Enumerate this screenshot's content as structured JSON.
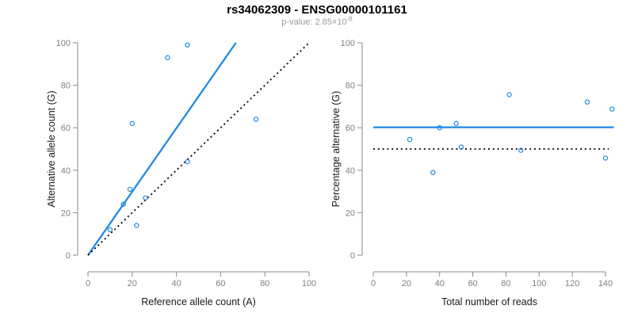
{
  "header": {
    "title": "rs34062309 - ENSG00000101161",
    "subtitle_prefix": "p-value: ",
    "subtitle_mantissa": "2.85×10",
    "subtitle_exponent": "-8"
  },
  "colors": {
    "accent_blue": "#1e87e5",
    "dotted_black": "#000000",
    "axis_gray": "#8a8a8a",
    "tick_label_gray": "#808080",
    "axis_title_black": "#1a1a1a",
    "subtitle_gray": "#9a9a9a",
    "background": "#ffffff"
  },
  "chart_data": [
    {
      "type": "scatter",
      "panel": "left",
      "xlabel": "Reference allele count (A)",
      "ylabel": "Alternative allele count (G)",
      "xlim": [
        0,
        100
      ],
      "ylim": [
        0,
        100
      ],
      "xticks": [
        0,
        20,
        40,
        60,
        80,
        100
      ],
      "yticks": [
        0,
        20,
        40,
        60,
        80,
        100
      ],
      "grid": false,
      "legend": "none",
      "points": [
        [
          10,
          12
        ],
        [
          16,
          24
        ],
        [
          19,
          31
        ],
        [
          20,
          62
        ],
        [
          22,
          14
        ],
        [
          26,
          27
        ],
        [
          36,
          93
        ],
        [
          45,
          44
        ],
        [
          45,
          99
        ],
        [
          76,
          64
        ]
      ],
      "lines": [
        {
          "name": "fit-line",
          "style": "solid",
          "color": "#1e87e5",
          "x": [
            0,
            66.9
          ],
          "y": [
            0,
            100
          ]
        },
        {
          "name": "identity-line",
          "style": "dotted",
          "color": "#000000",
          "x": [
            0,
            100
          ],
          "y": [
            0,
            100
          ]
        }
      ]
    },
    {
      "type": "scatter",
      "panel": "right",
      "xlabel": "Total number of reads",
      "ylabel": "Percentage alternative (G)",
      "xlim": [
        0,
        145
      ],
      "ylim": [
        0,
        100
      ],
      "xticks": [
        0,
        20,
        40,
        60,
        80,
        100,
        120,
        140
      ],
      "yticks": [
        0,
        20,
        40,
        60,
        80,
        100
      ],
      "grid": false,
      "legend": "none",
      "points": [
        [
          22,
          54.5
        ],
        [
          36,
          38.9
        ],
        [
          40,
          60
        ],
        [
          50,
          62
        ],
        [
          53,
          50.9
        ],
        [
          82,
          75.6
        ],
        [
          89,
          49.4
        ],
        [
          129,
          72.1
        ],
        [
          140,
          45.7
        ],
        [
          144,
          68.8
        ]
      ],
      "lines": [
        {
          "name": "fit-line",
          "style": "solid",
          "color": "#1e87e5",
          "x": [
            0,
            145
          ],
          "y": [
            60.2,
            60.2
          ]
        },
        {
          "name": "expected-line",
          "style": "dotted",
          "color": "#000000",
          "x": [
            0,
            142
          ],
          "y": [
            50,
            50
          ]
        }
      ]
    }
  ]
}
